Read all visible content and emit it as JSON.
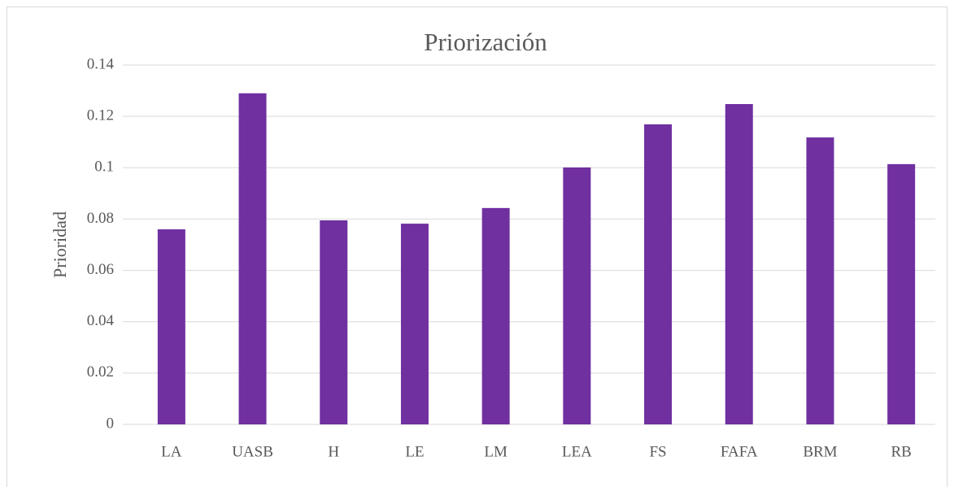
{
  "chart_data": {
    "type": "bar",
    "title": "Priorización",
    "y_label": "Prioridad",
    "categories": [
      "LA",
      "UASB",
      "H",
      "LE",
      "LM",
      "LEA",
      "FS",
      "FAFA",
      "BRM",
      "RB"
    ],
    "values": [
      0.076,
      0.129,
      0.0795,
      0.0782,
      0.0843,
      0.1001,
      0.1169,
      0.1248,
      0.1118,
      0.1014
    ],
    "color": "#7030a0",
    "ylim": [
      0,
      0.14
    ],
    "yticks": [
      0,
      0.02,
      0.04,
      0.06,
      0.08,
      0.1,
      0.12,
      0.14
    ],
    "grid": true
  }
}
